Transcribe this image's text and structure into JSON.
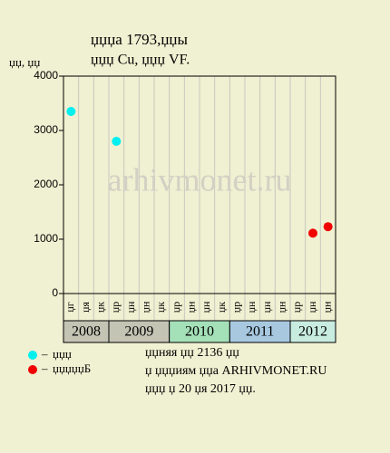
{
  "chart_data": {
    "type": "scatter",
    "title": "џџџа 1793,џџы",
    "subtitle": "џџџ Cu, џџџ VF.",
    "y_label": "џџ, џџ",
    "watermark": "arhivmonet.ru",
    "categories": [
      "џг",
      "џя",
      "џк",
      "џр",
      "џн",
      "џн",
      "џк",
      "џр",
      "џн",
      "џн",
      "џк",
      "џр",
      "џн",
      "џн",
      "џн",
      "џр",
      "џн",
      "џн"
    ],
    "groups": [
      {
        "label": "2008",
        "span": 3,
        "color": "#c4c4b4"
      },
      {
        "label": "2009",
        "span": 4,
        "color": "#c4c4b4"
      },
      {
        "label": "2010",
        "span": 4,
        "color": "#a4e0b8"
      },
      {
        "label": "2011",
        "span": 4,
        "color": "#a8c8e0"
      },
      {
        "label": "2012",
        "span": 3,
        "color": "#c8ece0"
      }
    ],
    "series": [
      {
        "name": "џџџ",
        "color": "#00f0f0",
        "values": [
          3350,
          null,
          null,
          2800,
          null,
          null,
          null,
          null,
          null,
          null,
          null,
          null,
          null,
          null,
          null,
          null,
          null,
          null
        ]
      },
      {
        "name": "џџџџџБ",
        "color": "#f00000",
        "values": [
          null,
          null,
          null,
          null,
          null,
          null,
          null,
          null,
          null,
          null,
          null,
          null,
          null,
          null,
          null,
          null,
          1110,
          1230
        ]
      }
    ],
    "ylim": [
      0,
      4000
    ],
    "yticks": [
      0,
      1000,
      2000,
      3000,
      4000
    ],
    "grid": true,
    "notes": [
      "џџняя џџ 2136 џџ",
      "џ џџџиям џџа ARHIVMONET.RU",
      "џџџ џ 20 џя 2017 џџ."
    ]
  }
}
